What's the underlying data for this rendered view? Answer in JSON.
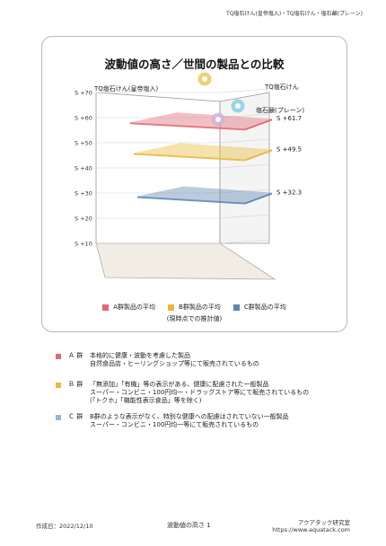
{
  "header": {
    "product_line": "TQ塩石けん(皇帝塩入)・TQ塩石けん・塩石鹸(プレーン)"
  },
  "chart_data": {
    "type": "bar",
    "title": "波動値の高さ／世間の製品との比較",
    "y_ticks": [
      "S +10",
      "S +20",
      "S +30",
      "S +40",
      "S +50",
      "S +60",
      "S +70"
    ],
    "ylim": [
      10,
      70
    ],
    "series": [
      {
        "name": "A群製品の平均",
        "value": 61.7,
        "label": "S +61.7",
        "color": "#e06a72"
      },
      {
        "name": "B群製品の平均",
        "value": 49.5,
        "label": "S +49.5",
        "color": "#e8b93a"
      },
      {
        "name": "C群製品の平均",
        "value": 32.3,
        "label": "S +32.3",
        "color": "#5f86b3"
      }
    ],
    "products": [
      {
        "label": "TQ塩石けん(皇帝塩入)",
        "color": "#e8c24a"
      },
      {
        "label": "TQ塩石けん",
        "color": "#7fc8e6"
      },
      {
        "label": "塩石鹸(プレーン)",
        "color": "#c8b4d8"
      }
    ],
    "legend_note": "(現時点での推計値)"
  },
  "groups": [
    {
      "name": "Ａ 群",
      "color": "#e06a72",
      "lines": [
        "本格的に健康・波動を考慮した製品",
        "自然食品店・ヒーリングショップ等にて販売されているもの"
      ]
    },
    {
      "name": "Ｂ 群",
      "color": "#e8b93a",
      "lines": [
        "「無添加」「有機」等の表示がある、健康に配慮された一般製品",
        "スーパー・コンビニ・100円均一・ドラッグストア等にて販売されているもの",
        "(「トクホ」「機能性表示食品」等を除く)"
      ]
    },
    {
      "name": "Ｃ 群",
      "color": "#8fb8d8",
      "lines": [
        "B群のような表示がなく、特別な健康への配慮はされていない一般製品",
        "スーパー・コンビニ・100円均一等にて販売されているもの"
      ]
    }
  ],
  "footer": {
    "date": "作成日：2022/12/10",
    "page": "波動値の高さ 1",
    "org": "アクアタック研究室",
    "url": "https://www.aquatack.com"
  }
}
